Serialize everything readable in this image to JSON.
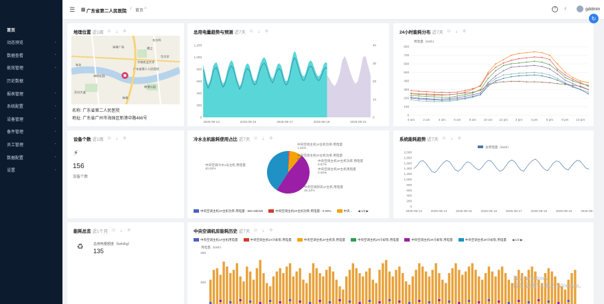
{
  "header": {
    "hospital": "广东省第二人民医院",
    "home": "首页",
    "user": "gddmin",
    "menu_icon": "hamburger-icon",
    "help_icon": "question-icon",
    "bell_icon": "bell-icon"
  },
  "sidebar": {
    "items": [
      {
        "label": "首页",
        "active": true,
        "sub": false
      },
      {
        "label": "动态预览",
        "sub": true
      },
      {
        "label": "数据查看",
        "sub": true
      },
      {
        "label": "能效管理",
        "sub": true
      },
      {
        "label": "历史数据",
        "sub": false
      },
      {
        "label": "报表管理",
        "sub": true
      },
      {
        "label": "系统配置",
        "sub": true
      },
      {
        "label": "设备管理",
        "sub": true
      },
      {
        "label": "备件管理",
        "sub": true
      },
      {
        "label": "员工管理",
        "sub": true
      },
      {
        "label": "数据配置",
        "sub": true
      },
      {
        "label": "设置",
        "sub": true
      }
    ]
  },
  "cards": {
    "location": {
      "title": "地理位置",
      "period": "近1周",
      "name": "名称: 广东省第二人民医院",
      "address": "地址: 广东省广州市海珠区新港中路466号",
      "map_labels": [
        "东方鸣",
        "华大学",
        "车坊",
        "海鸥花园",
        "华南农业大学",
        "晓港公园",
        "鹭江",
        "广东省第二人民医院",
        "芳村大道",
        "海珠",
        "海珠广场"
      ]
    },
    "electricity": {
      "title": "总用电量趋势与预测",
      "period": "近7天"
    },
    "energy24": {
      "title": "24小时能耗分布",
      "period": "近7天"
    },
    "devices": {
      "title": "设备个数",
      "period": "近1周",
      "value": "156",
      "label": "设备个数"
    },
    "chiller": {
      "title": "冷水主机能耗使用占比",
      "period": "近7天"
    },
    "system": {
      "title": "系统能耗趋势",
      "period": "近7天"
    },
    "summary": {
      "title": "能耗总览",
      "period": "近1个月",
      "label": "总用电量额度（kwh/kg）",
      "value": "135"
    },
    "history": {
      "title": "中央空调机房能耗历史",
      "period": "近7天",
      "pager": "1/3"
    }
  },
  "chart_data": [
    {
      "type": "area",
      "title": "总用电量趋势与预测",
      "x_ticks": [
        "2025-08-13",
        "2025-08-15",
        "2025-08-17",
        "2025-08-19",
        "2025-08-21"
      ],
      "y_left_ticks": [
        "0",
        "200",
        "400",
        "600",
        "800",
        "1,000",
        "1,200"
      ],
      "y_right_ticks": [
        "0",
        "10",
        "20",
        "30",
        "40"
      ],
      "series": [
        {
          "color": "#3ccfd0",
          "values": [
            880,
            760,
            620,
            540,
            600,
            700,
            850,
            900,
            920,
            850,
            740,
            620,
            560,
            600,
            700,
            820,
            900,
            950,
            920,
            820,
            700,
            600,
            520,
            560,
            680,
            800,
            880,
            900,
            860,
            760,
            650,
            600,
            620,
            720,
            840,
            920,
            980,
            1000,
            960,
            860,
            760,
            680,
            640,
            700,
            800,
            880,
            900,
            870,
            780,
            660,
            600,
            620,
            720,
            860,
            1000,
            1100,
            1080,
            980,
            880,
            780,
            700,
            680,
            740,
            840,
            920,
            950,
            920,
            840,
            760,
            700,
            680,
            720,
            800,
            880,
            920,
            900
          ]
        },
        {
          "color": "#d7cfe6",
          "values": [
            700,
            640,
            560,
            520,
            600,
            740,
            960,
            1020,
            900,
            760,
            640,
            560,
            600,
            780,
            1000,
            1020,
            860,
            700
          ]
        }
      ]
    },
    {
      "type": "line",
      "title": "24小时能耗分布",
      "ylabel": "用电量（kWh）",
      "categories": [
        "0 am",
        "1",
        "2 am",
        "3",
        "4 am",
        "5",
        "6 am",
        "7",
        "8 am",
        "9",
        "10 am",
        "11",
        "12 pm",
        "1",
        "2 pm",
        "3",
        "4 pm",
        "5",
        "6 pm",
        "6",
        "8 pm",
        "9",
        "10 pm",
        "11"
      ],
      "x_ticks": [
        "0 am",
        "2 am",
        "4 am",
        "6 am",
        "8 am",
        "10 am",
        "12 pm",
        "2 pm",
        "4 pm",
        "6 pm",
        "8 pm",
        "10 pm"
      ],
      "y_ticks": [
        "0",
        "100",
        "200",
        "300",
        "400",
        "500",
        "600",
        "700",
        "800"
      ],
      "series": [
        {
          "color": "#e15759",
          "values": [
            290,
            280,
            275,
            270,
            268,
            265,
            270,
            290,
            310,
            340,
            480,
            560,
            610,
            640,
            660,
            670,
            680,
            675,
            650,
            540,
            470,
            420,
            380,
            340
          ]
        },
        {
          "color": "#f28e2b",
          "values": [
            260,
            250,
            250,
            245,
            240,
            240,
            250,
            270,
            300,
            350,
            500,
            600,
            650,
            700,
            720,
            730,
            740,
            730,
            700,
            600,
            500,
            440,
            400,
            380
          ]
        },
        {
          "color": "#59a14f",
          "values": [
            230,
            225,
            220,
            215,
            210,
            210,
            225,
            240,
            260,
            300,
            430,
            520,
            580,
            600,
            610,
            620,
            630,
            620,
            590,
            520,
            440,
            400,
            370,
            350
          ]
        },
        {
          "color": "#76b7b2",
          "values": [
            180,
            170,
            165,
            160,
            160,
            165,
            175,
            190,
            210,
            240,
            360,
            430,
            470,
            480,
            490,
            495,
            500,
            490,
            470,
            430,
            380,
            340,
            300,
            270
          ]
        },
        {
          "color": "#8c6bb1",
          "values": [
            210,
            200,
            195,
            190,
            190,
            195,
            205,
            220,
            240,
            260,
            380,
            460,
            520,
            560,
            570,
            575,
            580,
            570,
            540,
            480,
            410,
            370,
            330,
            300
          ]
        },
        {
          "color": "#9c755f",
          "values": [
            250,
            245,
            240,
            235,
            235,
            240,
            250,
            260,
            270,
            290,
            360,
            380,
            390,
            395,
            395,
            390,
            390,
            385,
            380,
            370,
            360,
            350,
            340,
            300
          ]
        },
        {
          "color": "#4e79a7",
          "values": [
            200,
            190,
            185,
            180,
            175,
            180,
            190,
            200,
            220,
            240,
            340,
            400,
            430,
            450,
            460,
            465,
            470,
            460,
            440,
            410,
            370,
            330,
            300,
            250
          ]
        }
      ]
    },
    {
      "type": "pie",
      "title": "冷水主机能耗使用占比",
      "slices": [
        {
          "name": "中央空调主机1#主机功率.用电量",
          "value": 1.25,
          "color": "#e15759",
          "pct": "1.25%"
        },
        {
          "name": "中央空调主机2#主机功率.用电量",
          "value": 0.0,
          "color": "#59a14f",
          "pct": "0%"
        },
        {
          "name": "中央空调主机4#主机功率.用电量",
          "value": 9.57,
          "color": "#f4a300",
          "pct": "9.57%"
        },
        {
          "name": "中央空调主机3#主机用电量",
          "value": 0.0,
          "color": "#cccccc",
          "pct": "0.00%"
        },
        {
          "name": "中央空调新风1#主机.用电量",
          "value": 48.24,
          "color": "#9b1fa6",
          "pct": "48.24%"
        },
        {
          "name": "中央空调冷水1号主机.用电量",
          "value": 40.82,
          "color": "#1f91c4",
          "pct": "40.82%"
        }
      ],
      "legend": [
        {
          "label": "中央空调主机1#主机功率.用电量 : 992.50kWh",
          "color": "#4e5fc4"
        },
        {
          "label": "中央空调主机2#主机功率.用电量 : 0.00%",
          "color": "#d13b2e"
        },
        {
          "label": "中央...",
          "color": "#f4a300"
        }
      ],
      "pager": "1/3"
    },
    {
      "type": "line",
      "title": "系统能耗趋势",
      "series_name": "总用电量（kWh）",
      "x_ticks": [
        "2025-08-13",
        "2025-08-14",
        "2025-08-15",
        "2025-08-16",
        "2025-08-17",
        "2025-08-18",
        "2025-08-19",
        "2025-08-20"
      ],
      "y_ticks": [
        "0",
        "200",
        "400",
        "600",
        "800",
        "1,000",
        "1,200",
        "1,400",
        "1,600",
        "1,800",
        "2,000"
      ],
      "values": [
        1400,
        1500,
        1650,
        1700,
        1600,
        1450,
        1300,
        1250,
        1350,
        1500,
        1620,
        1700,
        1650,
        1500,
        1350,
        1300,
        1400,
        1550,
        1650,
        1620,
        1500,
        1400,
        1350,
        1450,
        1600,
        1700,
        1680,
        1550,
        1400,
        1300,
        1350,
        1500,
        1650,
        1720,
        1650,
        1500,
        1350,
        1300,
        1450,
        1600,
        1700,
        1750,
        1650,
        1500,
        1380,
        1320,
        1450,
        1600,
        1680,
        1650,
        1520,
        1400,
        1350,
        1480,
        1620,
        1700,
        1680,
        1550,
        1420,
        1380
      ]
    },
    {
      "type": "bar",
      "title": "中央空调机房能耗历史",
      "ylabel": "用电量（kWh）",
      "y_ticks": [
        "600",
        "800"
      ],
      "legend": [
        {
          "name": "中央空调主机1#主机用电量",
          "color": "#4e5fc4"
        },
        {
          "name": "中央空调主机1#冷却泵.用电量",
          "color": "#d13b2e"
        },
        {
          "name": "中央空调主机2#主机泵.用电量",
          "color": "#f4a300"
        },
        {
          "name": "中央空调主机2#冷却泵.用电量",
          "color": "#2aa14b"
        },
        {
          "name": "中央空调主机3#冷却泵.用电量",
          "color": "#9b1fa6"
        },
        {
          "name": "中央空调主机3#冷却泵.用电量",
          "color": "#1f91c4"
        }
      ],
      "pager": "1/3",
      "values": [
        540,
        600,
        610,
        570,
        650,
        620,
        580,
        600,
        640,
        560,
        530,
        620,
        590,
        540,
        610,
        660,
        580,
        520,
        500,
        560,
        590,
        610,
        580,
        620,
        640,
        560,
        590,
        610,
        540,
        520,
        580,
        640,
        610,
        580,
        560,
        600,
        620,
        590,
        540,
        500,
        480,
        560,
        600,
        640,
        610,
        580,
        560,
        590,
        610,
        540,
        520,
        600,
        640,
        660,
        590,
        560,
        600,
        620,
        580,
        530,
        510,
        560,
        600,
        640,
        620,
        590,
        560,
        600,
        640,
        580,
        540,
        520,
        580,
        610,
        640,
        600,
        570,
        590,
        620,
        640,
        600,
        560,
        540,
        580,
        620,
        590,
        560,
        600,
        620,
        580,
        540,
        520,
        560,
        600,
        580,
        560,
        600,
        620,
        590,
        540,
        520,
        580,
        610,
        590,
        560,
        520,
        500,
        480,
        540,
        580,
        600
      ]
    }
  ]
}
